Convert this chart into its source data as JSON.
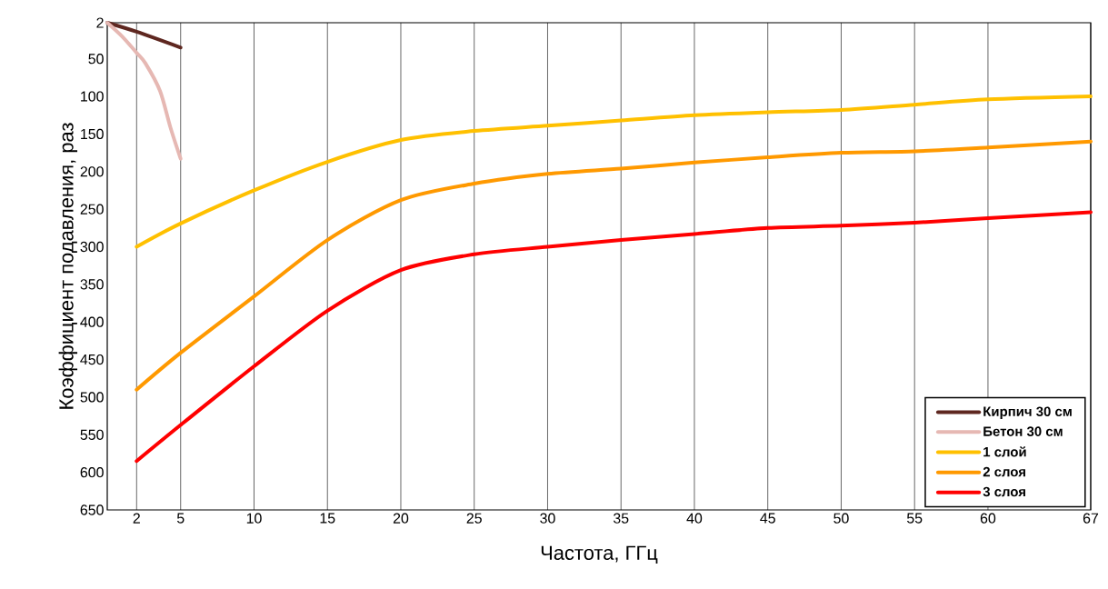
{
  "chart_data": {
    "type": "line",
    "xlabel": "Частота,  ГГц",
    "ylabel": "Коэффициент подавления, раз",
    "xlim": [
      0,
      67
    ],
    "xticks": [
      2,
      5,
      10,
      15,
      20,
      25,
      30,
      35,
      40,
      45,
      50,
      55,
      60,
      67
    ],
    "ylim": [
      650,
      2
    ],
    "yticks": [
      2,
      50,
      100,
      150,
      200,
      250,
      300,
      350,
      400,
      450,
      500,
      550,
      600,
      650
    ],
    "grid": "x",
    "legend": "bottom right",
    "marker": "none",
    "line_style": "solid",
    "series": [
      {
        "name": "Кирпич 30 см",
        "color": "#5e2720",
        "x": [
          0,
          2,
          5
        ],
        "values": [
          2,
          14,
          35
        ]
      },
      {
        "name": "Бетон 30 см",
        "color": "#e6b8b3",
        "x": [
          0,
          1,
          2,
          2.6,
          3.6,
          4.3,
          5
        ],
        "values": [
          2,
          20,
          42,
          56,
          93,
          141,
          183
        ]
      },
      {
        "name": "1 слой",
        "color": "#ffc000",
        "x": [
          2,
          5,
          10,
          15,
          20,
          25,
          30,
          35,
          40,
          45,
          50,
          55,
          60,
          67
        ],
        "values": [
          300,
          269,
          225,
          187,
          158,
          146,
          139,
          132,
          125,
          121,
          118,
          111,
          104,
          100
        ]
      },
      {
        "name": "2 слоя",
        "color": "#ff9900",
        "x": [
          2,
          5,
          10,
          15,
          20,
          25,
          30,
          35,
          40,
          45,
          50,
          55,
          60,
          67
        ],
        "values": [
          490,
          441,
          366,
          291,
          238,
          216,
          203,
          196,
          188,
          181,
          175,
          173,
          168,
          160
        ]
      },
      {
        "name": "3 слоя",
        "color": "#ff0000",
        "x": [
          2,
          5,
          10,
          15,
          20,
          25,
          30,
          35,
          40,
          45,
          50,
          55,
          60,
          67
        ],
        "values": [
          585,
          537,
          459,
          385,
          331,
          310,
          300,
          291,
          283,
          275,
          272,
          268,
          262,
          254
        ]
      }
    ]
  }
}
